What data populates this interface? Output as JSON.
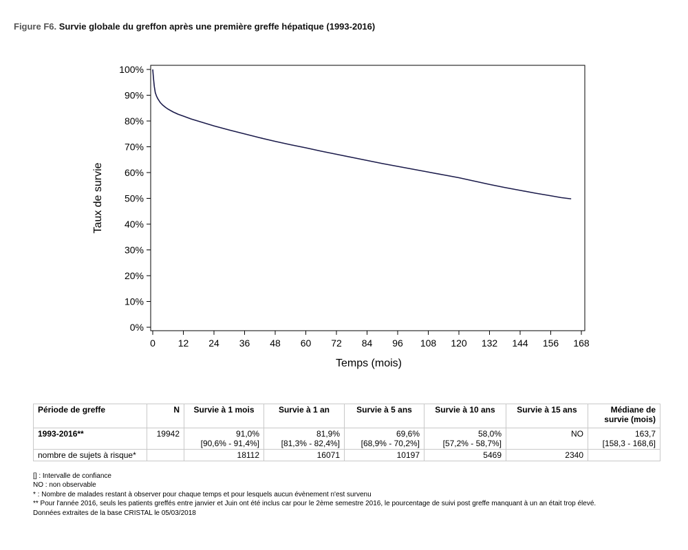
{
  "figure": {
    "label": "Figure F6.",
    "title": "Survie globale du greffon après une première greffe hépatique (1993-2016)"
  },
  "chart_data": {
    "type": "line",
    "xlabel": "Temps (mois)",
    "ylabel": "Taux de survie",
    "xlim": [
      0,
      168
    ],
    "ylim": [
      0,
      100
    ],
    "x_ticks": [
      "0",
      "12",
      "24",
      "36",
      "48",
      "60",
      "72",
      "84",
      "96",
      "108",
      "120",
      "132",
      "144",
      "156",
      "168"
    ],
    "y_ticks": [
      "0%",
      "10%",
      "20%",
      "30%",
      "40%",
      "50%",
      "60%",
      "70%",
      "80%",
      "90%",
      "100%"
    ],
    "grid": false,
    "line_color": "#1a1a4a",
    "series": [
      {
        "x": [
          0,
          0.3,
          0.6,
          1,
          1.5,
          2,
          3,
          4,
          5,
          6,
          8,
          10,
          12,
          15,
          18,
          24,
          30,
          36,
          42,
          48,
          54,
          60,
          66,
          72,
          78,
          84,
          90,
          96,
          102,
          108,
          114,
          120,
          126,
          132,
          138,
          144,
          150,
          156,
          160,
          164
        ],
        "y": [
          100,
          96.5,
          93.5,
          91,
          89.6,
          88.6,
          87.1,
          86.1,
          85.3,
          84.6,
          83.5,
          82.6,
          81.9,
          80.8,
          79.9,
          78.1,
          76.5,
          75.0,
          73.5,
          72.1,
          70.8,
          69.6,
          68.3,
          67.1,
          65.9,
          64.7,
          63.5,
          62.4,
          61.3,
          60.2,
          59.1,
          58.0,
          56.7,
          55.4,
          54.2,
          53.1,
          52.0,
          51.0,
          50.3,
          49.8
        ]
      }
    ]
  },
  "table": {
    "headers": [
      "Période de greffe",
      "N",
      "Survie à 1 mois",
      "Survie à 1 an",
      "Survie à 5 ans",
      "Survie à 10 ans",
      "Survie à 15 ans",
      "Médiane de survie (mois)"
    ],
    "row1": {
      "period": "1993-2016**",
      "n": "19942",
      "m1": "91,0%",
      "m1_ci": "[90,6% - 91,4%]",
      "y1": "81,9%",
      "y1_ci": "[81,3% - 82,4%]",
      "y5": "69,6%",
      "y5_ci": "[68,9% - 70,2%]",
      "y10": "58,0%",
      "y10_ci": "[57,2% - 58,7%]",
      "y15": "NO",
      "median": "163,7",
      "median_ci": "[158,3 - 168,6]"
    },
    "row2": {
      "label": "nombre de sujets à risque*",
      "m1": "18112",
      "y1": "16071",
      "y5": "10197",
      "y10": "5469",
      "y15": "2340"
    }
  },
  "footnotes": [
    "[] : Intervalle de confiance",
    "NO : non observable",
    "* : Nombre de malades restant à observer pour chaque temps et pour lesquels aucun évènement n'est survenu",
    "** Pour l'année 2016, seuls les patients greffés entre janvier et Juin ont été inclus car pour le 2ème semestre 2016, le pourcentage de suivi post greffe manquant à un an était trop élevé.",
    "Données extraites de la base CRISTAL le 05/03/2018"
  ]
}
